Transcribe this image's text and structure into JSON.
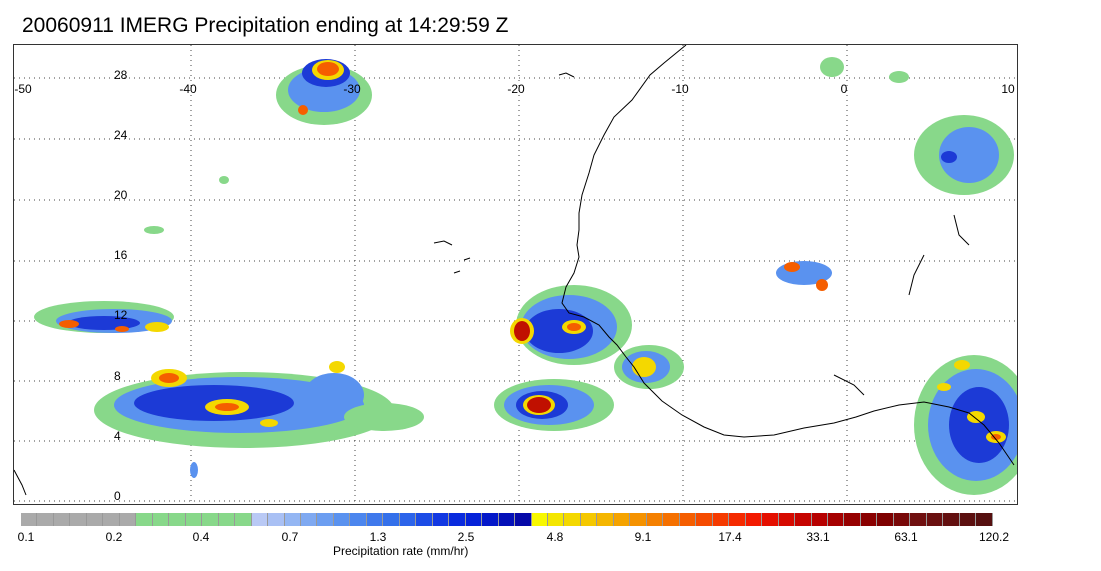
{
  "title": "20060911 IMERG Precipitation ending at 14:29:59 Z",
  "map": {
    "lon_ticks": [
      "-50",
      "-40",
      "-30",
      "-20",
      "-10",
      "0",
      "10"
    ],
    "lat_ticks": [
      "28",
      "24",
      "20",
      "16",
      "12",
      "8",
      "4",
      "0"
    ],
    "coastline_color": "#000000",
    "gridline_style": "dotted"
  },
  "colorbar": {
    "label": "Precipitation rate (mm/hr)",
    "tick_labels": [
      "0.1",
      "0.2",
      "0.4",
      "0.7",
      "1.3",
      "2.5",
      "4.8",
      "9.1",
      "17.4",
      "33.1",
      "63.1",
      "120.2"
    ],
    "colors": [
      "#aaaaaa",
      "#aaaaaa",
      "#aaaaaa",
      "#aaaaaa",
      "#aaaaaa",
      "#aaaaaa",
      "#aaaaaa",
      "#88d88a",
      "#88d88a",
      "#88d88a",
      "#88d88a",
      "#88d88a",
      "#88d88a",
      "#88d88a",
      "#b9c9f5",
      "#a9c0f4",
      "#94b6f3",
      "#7fa9f1",
      "#6c9ef1",
      "#5a92ef",
      "#4c86ee",
      "#3f79ec",
      "#3470ea",
      "#2c64ea",
      "#1c4ce6",
      "#1238e2",
      "#0a2bde",
      "#0522d9",
      "#0418c9",
      "#0410b8",
      "#0508a8",
      "#f8f800",
      "#f4e600",
      "#f4d800",
      "#f5c800",
      "#f5b600",
      "#f5a300",
      "#f59200",
      "#f58000",
      "#f57000",
      "#f55e00",
      "#f54b00",
      "#f53a00",
      "#f52a00",
      "#f31a00",
      "#e40f00",
      "#d60a00",
      "#c60400",
      "#b60000",
      "#a60000",
      "#960000",
      "#8a0000",
      "#7e0000",
      "#780808",
      "#701010",
      "#6a1010",
      "#631010",
      "#5c1010",
      "#561010"
    ]
  },
  "precip_colors": {
    "light": "#88d88a",
    "moderate": "#5a92ef",
    "heavy": "#1c3ad6",
    "very_heavy": "#f4d800",
    "intense": "#f55e00",
    "extreme": "#c01000"
  }
}
